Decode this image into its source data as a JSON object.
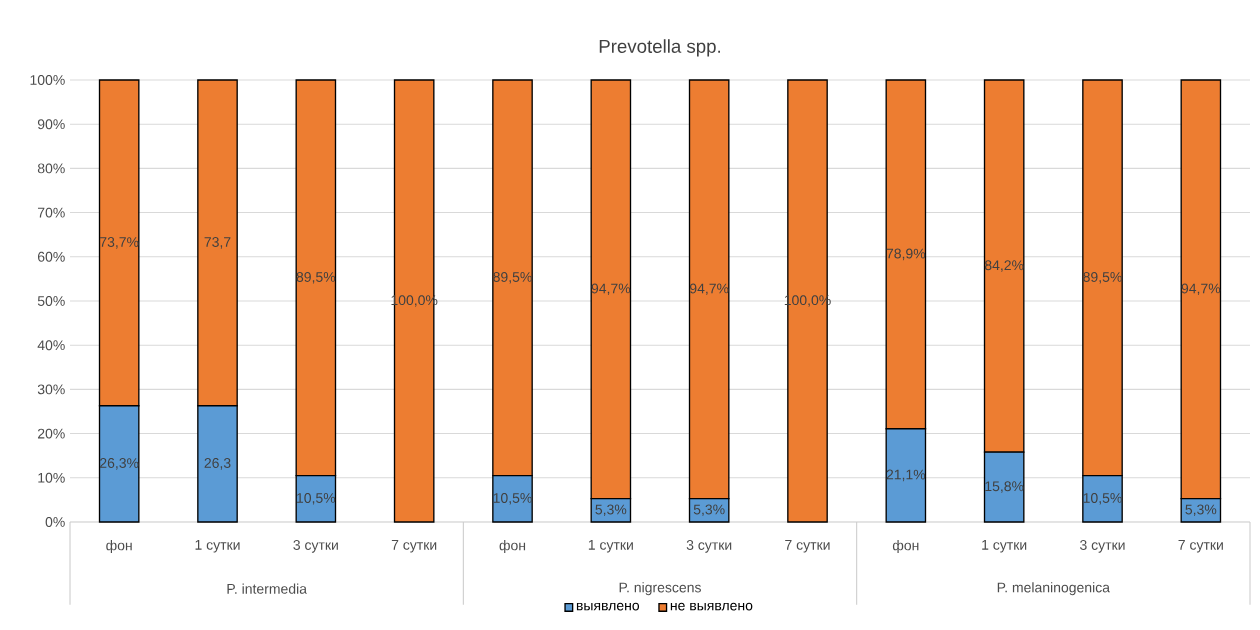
{
  "chart_data": {
    "type": "bar",
    "stacked": true,
    "title": "Prevotella spp.",
    "categories": [
      "фон",
      "1 сутки",
      "3 сутки",
      "7 сутки",
      "фон",
      "1 сутки",
      "3 сутки",
      "7 сутки",
      "фон",
      "1 сутки",
      "3 сутки",
      "7 сутки"
    ],
    "annotations": [
      "P. intermedia",
      "P. nigrescens",
      "P. melaninogenica"
    ],
    "series": [
      {
        "name": "выявлено",
        "color": "#5b9bd5",
        "values": [
          26.3,
          26.3,
          10.5,
          0,
          10.5,
          5.3,
          5.3,
          0,
          21.1,
          15.8,
          10.5,
          5.3
        ],
        "value_labels": [
          "26,3%",
          "26,3",
          "10,5%",
          null,
          "10,5%",
          "5,3%",
          "5,3%",
          null,
          "21,1%",
          "15,8%",
          "10,5%",
          "5,3%"
        ]
      },
      {
        "name": "не выявлено",
        "color": "#ed7d31",
        "values": [
          73.7,
          73.7,
          89.5,
          100,
          89.5,
          94.7,
          94.7,
          100,
          78.9,
          84.2,
          89.5,
          94.7
        ],
        "value_labels": [
          "73,7%",
          "73,7",
          "89,5%",
          "100,0%",
          "89,5%",
          "94,7%",
          "94,7%",
          "100,0%",
          "78,9%",
          "84,2%",
          "89,5%",
          "94,7%"
        ]
      }
    ],
    "ylim": [
      0,
      100
    ],
    "yticks": [
      {
        "value": 0,
        "label": "0%"
      },
      {
        "value": 10,
        "label": "10%"
      },
      {
        "value": 20,
        "label": "20%"
      },
      {
        "value": 30,
        "label": "30%"
      },
      {
        "value": 40,
        "label": "40%"
      },
      {
        "value": 50,
        "label": "50%"
      },
      {
        "value": 60,
        "label": "60%"
      },
      {
        "value": 70,
        "label": "70%"
      },
      {
        "value": 80,
        "label": "80%"
      },
      {
        "value": 90,
        "label": "90%"
      },
      {
        "value": 100,
        "label": "100%"
      }
    ],
    "grid": "y",
    "legend": "bottom"
  }
}
